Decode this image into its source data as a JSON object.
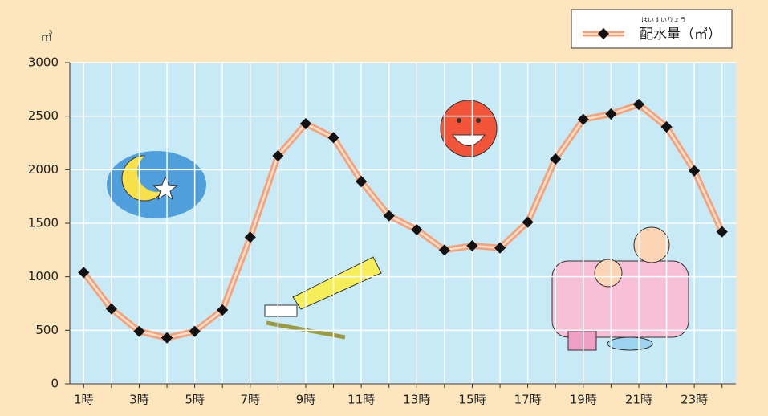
{
  "chart_data": {
    "type": "line",
    "y_unit": "㎥",
    "categories": [
      "1時",
      null,
      "3時",
      null,
      "5時",
      null,
      "7時",
      null,
      "9時",
      null,
      "11時",
      null,
      "13時",
      null,
      "15時",
      null,
      "17時",
      null,
      "19時",
      null,
      "21時",
      null,
      "23時",
      null
    ],
    "series": [
      {
        "name": "配水量（㎥）",
        "name_ruby": "はいすいりょう",
        "color": "#f4a27c",
        "values": [
          1040,
          700,
          490,
          430,
          490,
          690,
          1370,
          2130,
          2430,
          2300,
          1890,
          1570,
          1440,
          1250,
          1290,
          1270,
          1510,
          2100,
          2470,
          2520,
          2610,
          2400,
          1990,
          1420
        ]
      }
    ],
    "ylim": [
      0,
      3000
    ],
    "yticks": [
      0,
      500,
      1000,
      1500,
      2000,
      2500,
      3000
    ],
    "grid": true,
    "legend": "top-right"
  }
}
